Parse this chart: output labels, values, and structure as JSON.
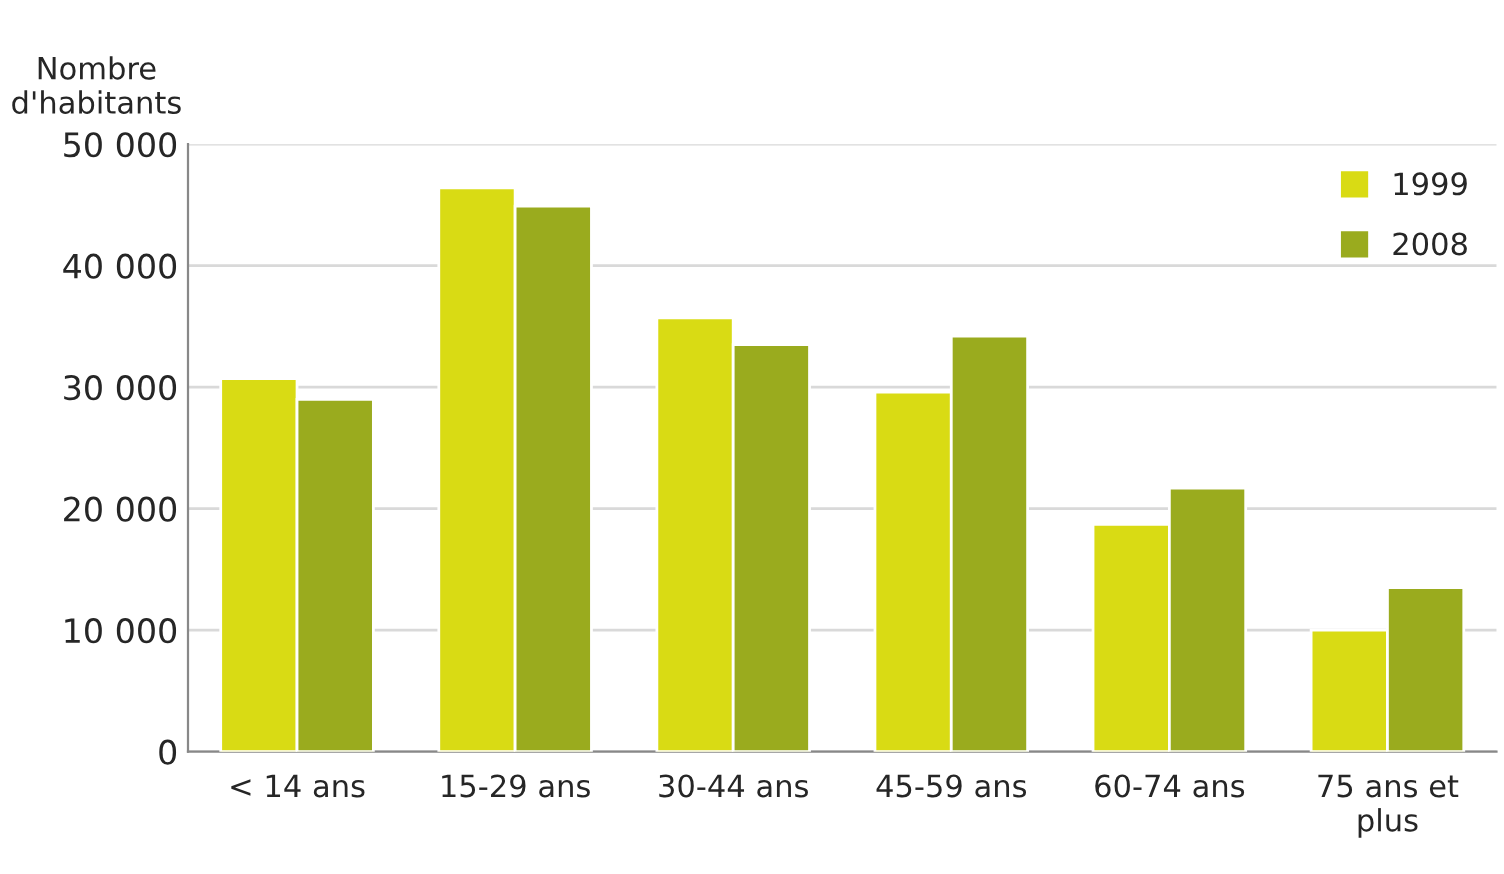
{
  "chart_data": {
    "type": "bar",
    "ylabel": "Nombre\nd'habitants",
    "categories": [
      "< 14 ans",
      "15-29 ans",
      "30-44 ans",
      "45-59 ans",
      "60-74 ans",
      "75 ans et\nplus"
    ],
    "series": [
      {
        "name": "1999",
        "color": "#d9db14",
        "values": [
          30700,
          46400,
          35700,
          29600,
          18700,
          10000
        ]
      },
      {
        "name": "2008",
        "color": "#9aab1e",
        "values": [
          29000,
          44900,
          33500,
          34200,
          21700,
          13500
        ]
      }
    ],
    "ylim": [
      0,
      50000
    ],
    "yticks": [
      {
        "value": 0,
        "label": "0"
      },
      {
        "value": 10000,
        "label": "10 000"
      },
      {
        "value": 20000,
        "label": "20 000"
      },
      {
        "value": 30000,
        "label": "30 000"
      },
      {
        "value": 40000,
        "label": "40 000"
      },
      {
        "value": 50000,
        "label": "50 000"
      }
    ],
    "grid": "y",
    "legend": "top right"
  }
}
